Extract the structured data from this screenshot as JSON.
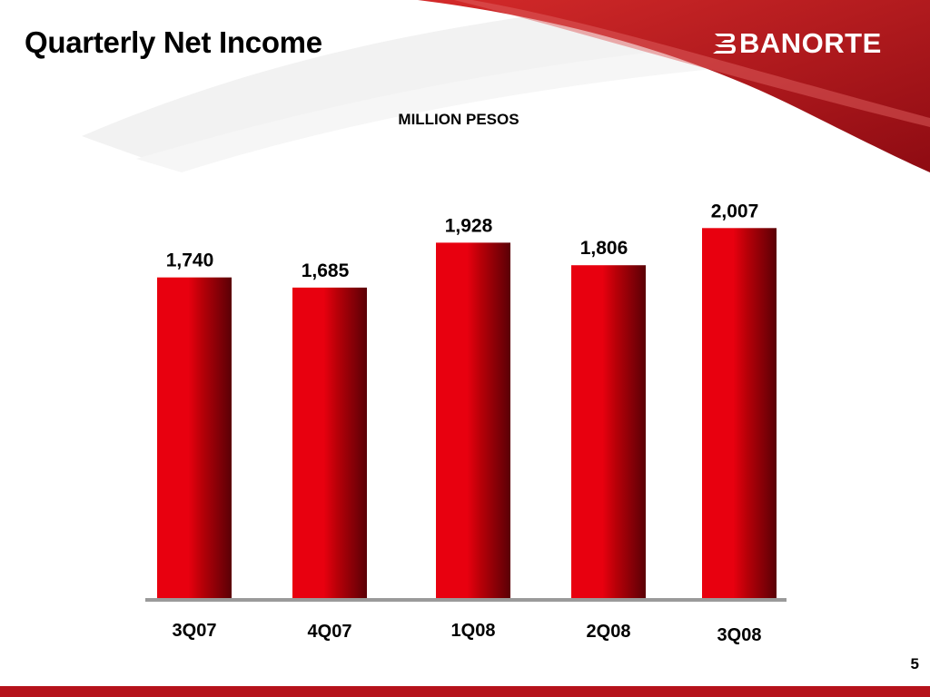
{
  "slide": {
    "title": "Quarterly Net Income",
    "brand": "BANORTE",
    "page_number": "5"
  },
  "colors": {
    "brand_red": "#b5121b",
    "bar_light": "#e8000f",
    "bar_dark": "#5a0006",
    "axis": "#9a9a9a"
  },
  "chart_data": {
    "type": "bar",
    "subtitle": "MILLION PESOS",
    "categories": [
      "3Q07",
      "4Q07",
      "1Q08",
      "2Q08",
      "3Q08"
    ],
    "values": [
      1740,
      1685,
      1928,
      1806,
      2007
    ],
    "value_labels": [
      "1,740",
      "1,685",
      "1,928",
      "1,806",
      "2,007"
    ],
    "ylim": [
      0,
      2200
    ],
    "grid": false,
    "legend": "none"
  }
}
